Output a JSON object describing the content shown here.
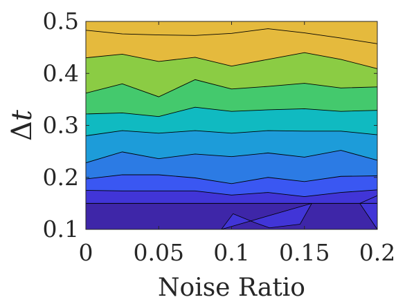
{
  "chart_data": {
    "type": "heatmap",
    "subtype": "filled-contour",
    "title": "",
    "xlabel": "Noise Ratio",
    "ylabel": {
      "symbol": "Δ",
      "variable": "t"
    },
    "xlim": [
      0,
      0.2
    ],
    "ylim": [
      0.1,
      0.5
    ],
    "x_ticks": [
      "0",
      "0.05",
      "0.1",
      "0.15",
      "0.2"
    ],
    "y_ticks": [
      "0.1",
      "0.2",
      "0.3",
      "0.4",
      "0.5"
    ],
    "x_tick_values": [
      0,
      0.05,
      0.1,
      0.15,
      0.2
    ],
    "y_tick_values": [
      0.1,
      0.2,
      0.3,
      0.4,
      0.5
    ],
    "x": [
      0,
      0.025,
      0.05,
      0.075,
      0.1,
      0.125,
      0.15,
      0.175,
      0.2
    ],
    "contour_lines": [
      {
        "level": 1,
        "y": [
          0.15,
          0.15,
          0.15,
          0.15,
          0.15,
          0.15,
          0.15,
          0.15,
          0.15
        ]
      },
      {
        "level": 2,
        "y": [
          0.175,
          0.174,
          0.174,
          0.174,
          0.166,
          0.171,
          0.163,
          0.171,
          0.176
        ]
      },
      {
        "level": 3,
        "y": [
          0.197,
          0.205,
          0.205,
          0.199,
          0.188,
          0.2,
          0.192,
          0.202,
          0.203
        ]
      },
      {
        "level": 4,
        "y": [
          0.228,
          0.249,
          0.236,
          0.245,
          0.24,
          0.247,
          0.239,
          0.252,
          0.233
        ]
      },
      {
        "level": 5,
        "y": [
          0.28,
          0.29,
          0.285,
          0.29,
          0.285,
          0.29,
          0.289,
          0.289,
          0.282
        ]
      },
      {
        "level": 6,
        "y": [
          0.322,
          0.324,
          0.317,
          0.335,
          0.327,
          0.33,
          0.332,
          0.327,
          0.329
        ]
      },
      {
        "level": 7,
        "y": [
          0.362,
          0.38,
          0.355,
          0.388,
          0.37,
          0.375,
          0.381,
          0.372,
          0.374
        ]
      },
      {
        "level": 8,
        "y": [
          0.43,
          0.437,
          0.423,
          0.431,
          0.414,
          0.427,
          0.44,
          0.427,
          0.409
        ]
      },
      {
        "level": 9,
        "y": [
          0.483,
          0.476,
          0.474,
          0.473,
          0.477,
          0.486,
          0.478,
          0.468,
          0.457
        ]
      }
    ],
    "low_regions": [
      {
        "x": [
          0.093,
          0.101,
          0.116,
          0.126,
          0.147,
          0.155
        ],
        "y": [
          0.1,
          0.13,
          0.113,
          0.103,
          0.11,
          0.15
        ]
      },
      {
        "x": [
          0.188,
          0.2,
          0.2,
          0.2
        ],
        "y": [
          0.15,
          0.165,
          0.1,
          0.1
        ]
      }
    ],
    "colors": [
      "#3e26a8",
      "#4135d7",
      "#3a57f2",
      "#2c7be4",
      "#1d9cd9",
      "#10bac1",
      "#44c96d",
      "#8bcc44",
      "#e5ba3d"
    ],
    "low_region_color": "#4135d7",
    "grid": false
  }
}
